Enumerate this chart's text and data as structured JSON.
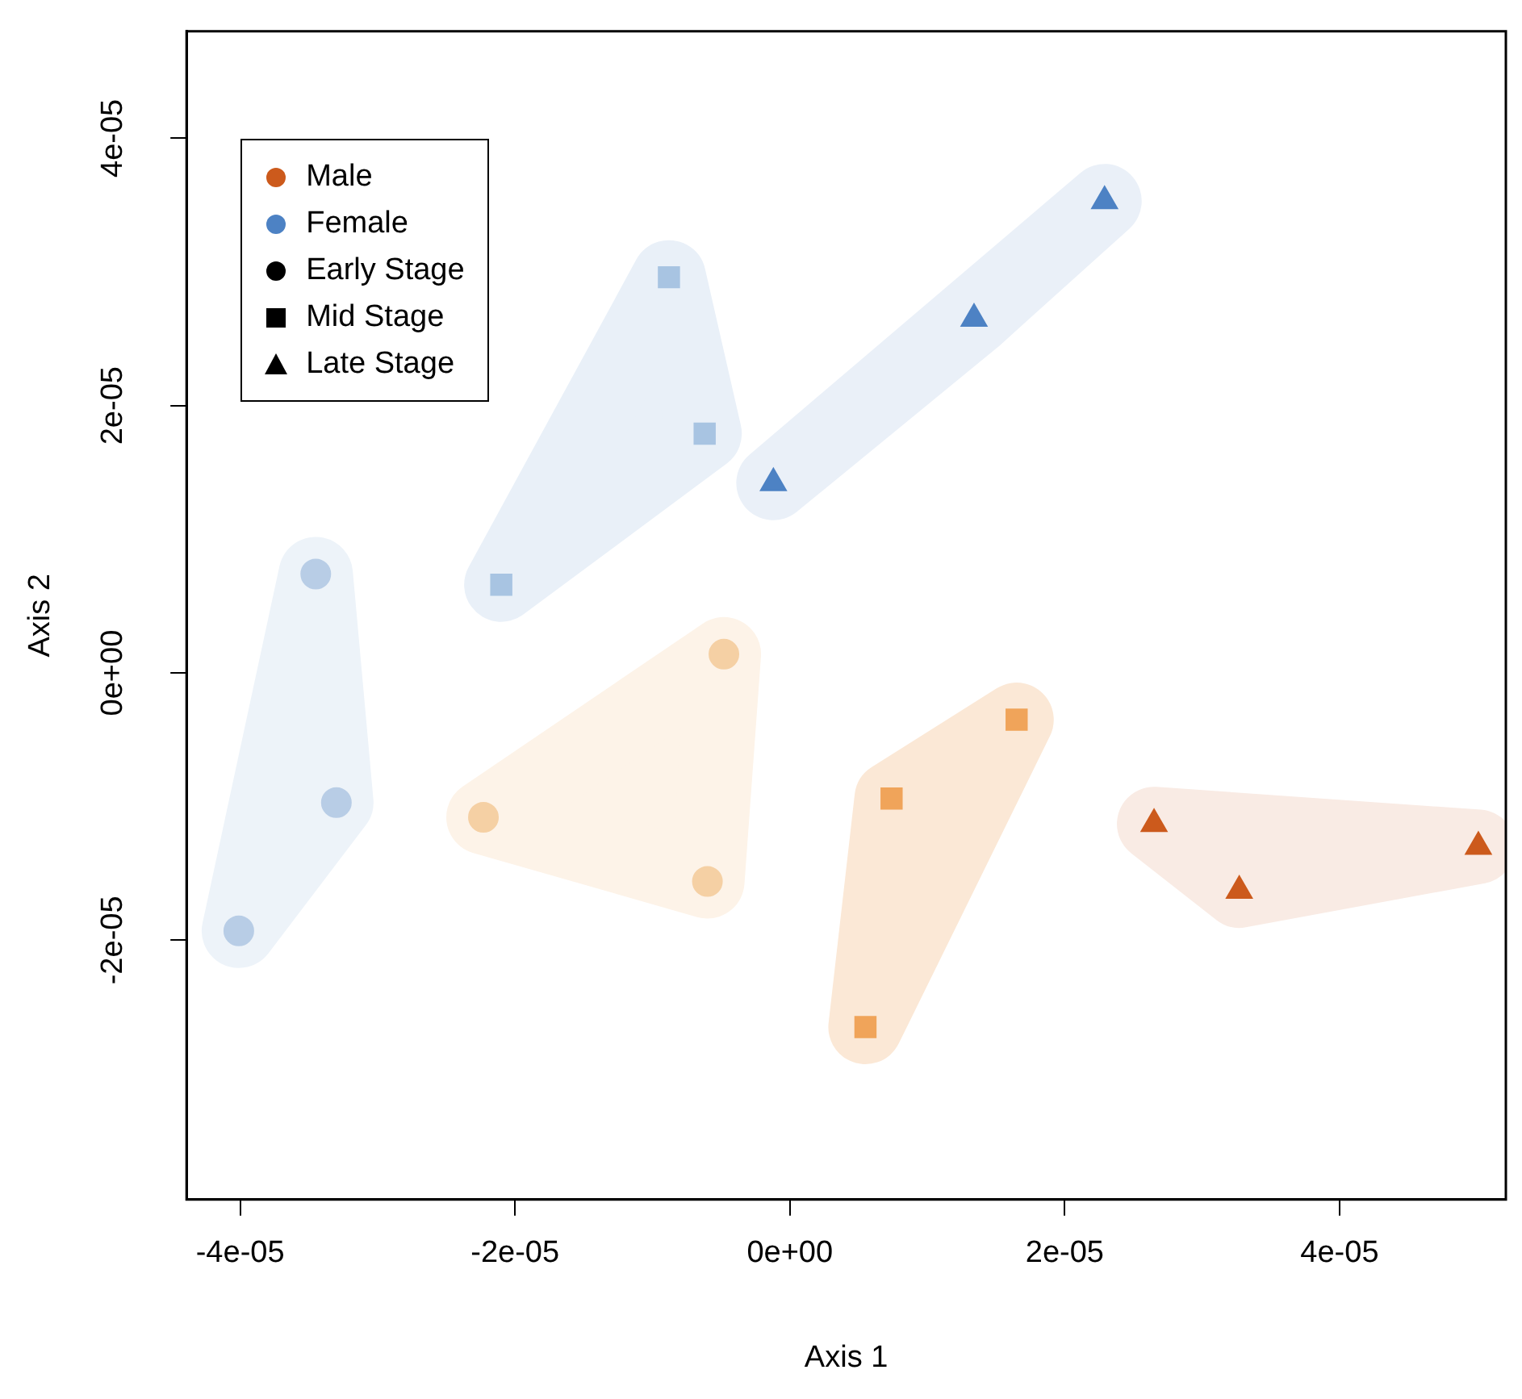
{
  "chart_data": {
    "type": "scatter",
    "xlabel": "Axis 1",
    "ylabel": "Axis 2",
    "xlim": [
      -4.39e-05,
      5.21e-05
    ],
    "ylim": [
      -3.94e-05,
      4.8e-05
    ],
    "xticks": [
      {
        "value": -4e-05,
        "label": "-4e-05"
      },
      {
        "value": -2e-05,
        "label": "-2e-05"
      },
      {
        "value": 0,
        "label": "0e+00"
      },
      {
        "value": 2e-05,
        "label": "2e-05"
      },
      {
        "value": 4e-05,
        "label": "4e-05"
      }
    ],
    "yticks": [
      {
        "value": -2e-05,
        "label": "-2e-05"
      },
      {
        "value": 0,
        "label": "0e+00"
      },
      {
        "value": 2e-05,
        "label": "2e-05"
      },
      {
        "value": 4e-05,
        "label": "4e-05"
      }
    ],
    "grid": false,
    "legend": "top left",
    "annotations": [
      "Early Stage",
      "Mid Stage",
      "Late Stage"
    ],
    "series": [
      {
        "marker": "circle",
        "color": "#f5d0a4",
        "x": [
          -4.8e-06,
          -2.23e-05,
          -6e-06
        ],
        "values": [
          1.4e-06,
          -1.08e-05,
          -1.56e-05
        ]
      },
      {
        "marker": "square",
        "color": "#f0a45a",
        "x": [
          1.65e-05,
          7.4e-06,
          5.5e-06
        ],
        "values": [
          -3.5e-06,
          -9.4e-06,
          -2.65e-05
        ]
      },
      {
        "name": "Male",
        "marker": "triangle",
        "color": "#cc5a1c",
        "x": [
          2.65e-05,
          3.27e-05,
          5.01e-05
        ],
        "values": [
          -1.13e-05,
          -1.63e-05,
          -1.3e-05
        ]
      },
      {
        "marker": "circle",
        "color": "#b8cde6",
        "x": [
          -3.45e-05,
          -3.3e-05,
          -4.01e-05
        ],
        "values": [
          7.4e-06,
          -9.7e-06,
          -1.93e-05
        ]
      },
      {
        "marker": "square",
        "color": "#a8c4e2",
        "x": [
          -8.8e-06,
          -6.2e-06,
          -2.1e-05
        ],
        "values": [
          2.96e-05,
          1.79e-05,
          6.6e-06
        ]
      },
      {
        "name": "Female",
        "marker": "triangle",
        "color": "#4d82c4",
        "x": [
          -1.2e-06,
          1.34e-05,
          2.29e-05
        ],
        "values": [
          1.42e-05,
          2.65e-05,
          3.53e-05
        ]
      }
    ]
  }
}
